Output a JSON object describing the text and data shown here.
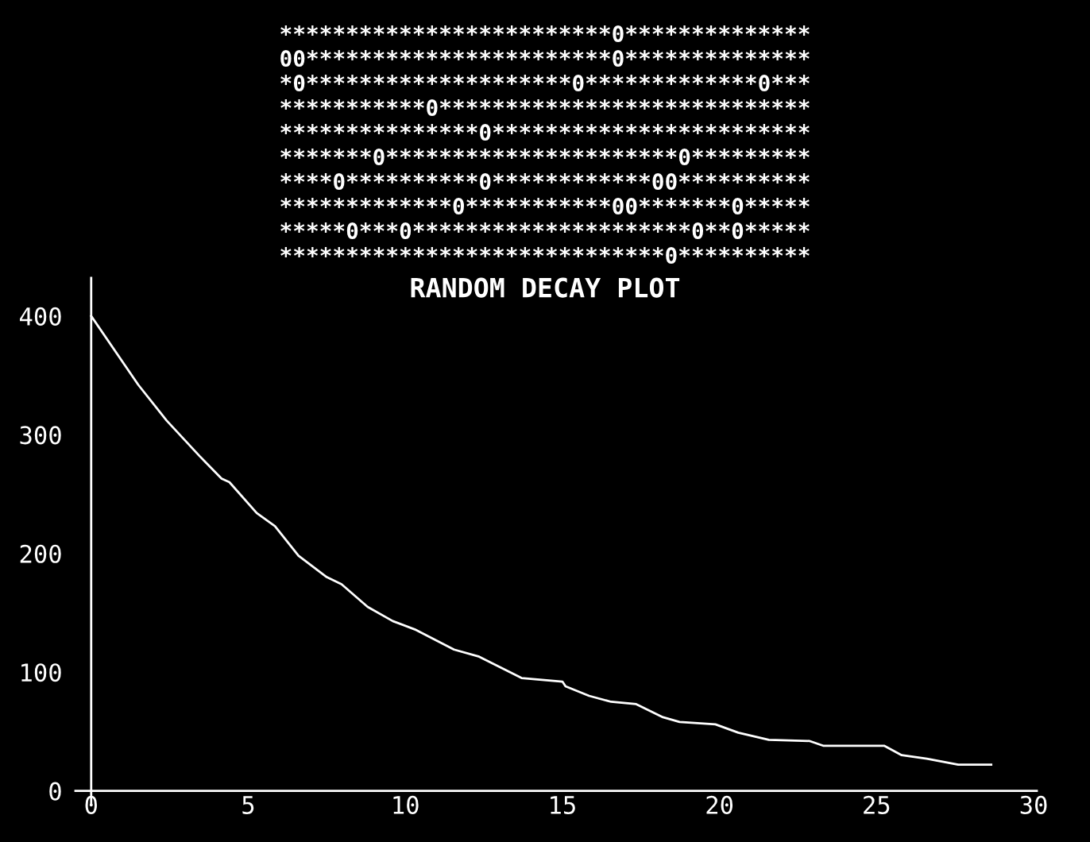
{
  "chart_data": {
    "type": "line",
    "title": "RANDOM DECAY PLOT",
    "annotations": [
      "*************************0**************",
      "00***********************0**************",
      "*0********************0*************0***",
      "***********0****************************",
      "***************0************************",
      "*******0**********************0*********",
      "****0**********0************00**********",
      "*************0***********00*******0*****",
      "*****0***0*********************0**0*****",
      "*****************************0**********"
    ],
    "x": [
      0,
      1.5,
      2.4,
      3.45,
      4.15,
      4.4,
      5.27,
      5.85,
      6.6,
      7.5,
      7.97,
      8.8,
      9.6,
      10.3,
      11.55,
      12.35,
      13.7,
      15.0,
      15.1,
      15.85,
      16.55,
      17.35,
      18.2,
      18.73,
      19.87,
      20.6,
      21.57,
      22.86,
      23.3,
      25.24,
      25.8,
      26.6,
      27.6,
      28.65
    ],
    "series": [
      {
        "color": "#ffffff",
        "values": [
          400,
          342,
          312,
          282,
          263,
          260,
          234,
          223,
          198,
          180,
          174,
          155,
          143,
          136,
          119,
          113,
          95,
          92,
          88,
          80,
          75,
          73,
          62,
          58,
          56,
          49,
          43,
          42,
          38,
          38,
          30,
          27,
          22,
          22
        ]
      }
    ],
    "xlim": [
      -0.5,
      30.1
    ],
    "ylim": [
      -11,
      432
    ],
    "xticks": [
      0,
      5,
      10,
      15,
      20,
      25,
      30
    ],
    "yticks": [
      0,
      100,
      200,
      300,
      400
    ],
    "grid": false,
    "legend": false,
    "marker": "none",
    "line_style": "solid"
  }
}
